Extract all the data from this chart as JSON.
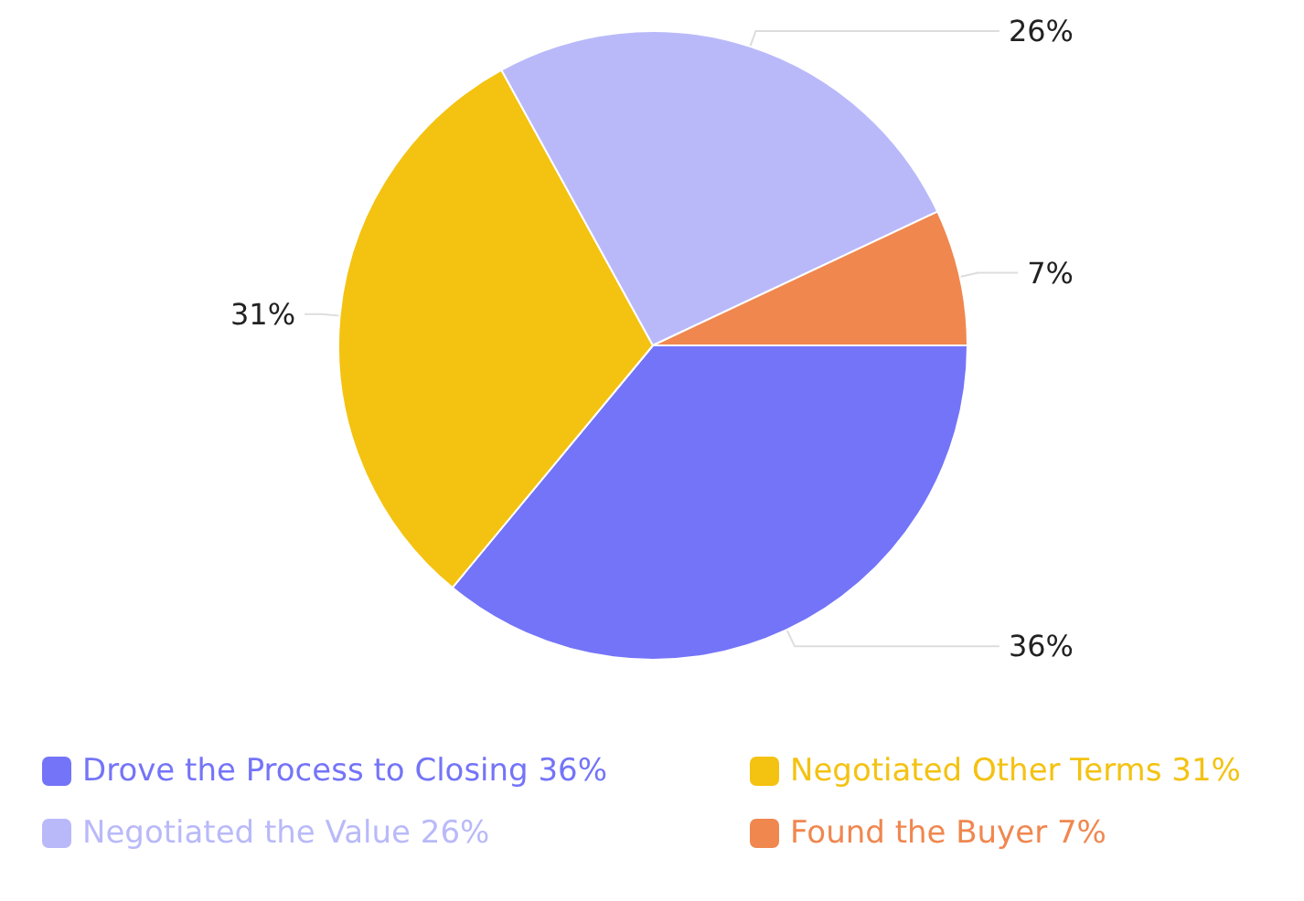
{
  "chart_data": {
    "type": "pie",
    "categories": [
      "Drove the Process to Closing 36%",
      "Negotiated Other Terms 31%",
      "Negotiated the Value 26%",
      "Found the Buyer 7%"
    ],
    "values": [
      36,
      31,
      26,
      7
    ],
    "value_labels": [
      "36%",
      "31%",
      "26%",
      "7%"
    ],
    "colors": [
      "#7474f8",
      "#f4c211",
      "#b9b9fa",
      "#f0874f"
    ],
    "legend": "bottom"
  }
}
